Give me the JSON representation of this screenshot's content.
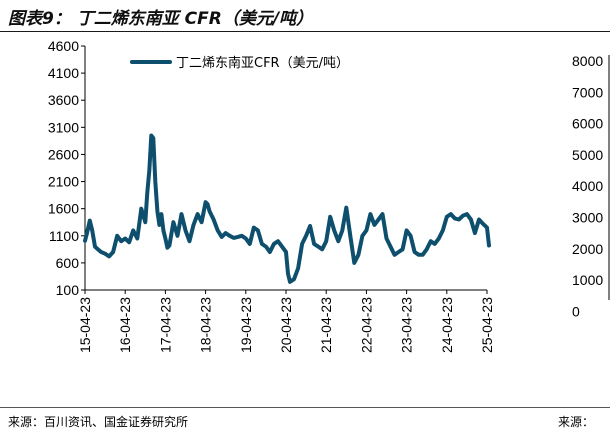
{
  "figure": {
    "title": "图表9： 丁二烯东南亚 CFR（美元/吨）",
    "source_left": "来源：百川资讯、国金证券研究所",
    "source_right": "来源："
  },
  "right_panel": {
    "tick_labels": [
      "8000",
      "7000",
      "6000",
      "5000",
      "4000",
      "3000",
      "2000",
      "1000",
      "0"
    ]
  },
  "chart_data": {
    "type": "line",
    "title": "",
    "xlabel": "",
    "ylabel": "",
    "ylim": [
      100,
      4600
    ],
    "yticks": [
      100,
      600,
      1100,
      1600,
      2100,
      2600,
      3100,
      3600,
      4100,
      4600
    ],
    "xticks": [
      "15-04-23",
      "16-04-23",
      "17-04-23",
      "18-04-23",
      "19-04-23",
      "20-04-23",
      "21-04-23",
      "22-04-23",
      "23-04-23",
      "24-04-23",
      "25-04-23"
    ],
    "legend": "top-left",
    "series": [
      {
        "name": "丁二烯东南亚CFR（美元/吨）",
        "color": "#0f4f6e",
        "x": [
          0,
          0.05,
          0.12,
          0.18,
          0.25,
          0.32,
          0.4,
          0.5,
          0.6,
          0.7,
          0.8,
          0.9,
          1.0,
          1.1,
          1.2,
          1.3,
          1.4,
          1.5,
          1.55,
          1.6,
          1.65,
          1.7,
          1.75,
          1.8,
          1.85,
          1.9,
          1.95,
          2.0,
          2.05,
          2.1,
          2.2,
          2.3,
          2.4,
          2.5,
          2.6,
          2.7,
          2.8,
          2.9,
          3.0,
          3.05,
          3.1,
          3.2,
          3.3,
          3.4,
          3.5,
          3.6,
          3.7,
          3.8,
          3.9,
          4.0,
          4.1,
          4.2,
          4.3,
          4.4,
          4.5,
          4.6,
          4.7,
          4.8,
          4.9,
          5.0,
          5.05,
          5.1,
          5.2,
          5.3,
          5.4,
          5.5,
          5.6,
          5.7,
          5.8,
          5.9,
          6.0,
          6.1,
          6.2,
          6.3,
          6.4,
          6.5,
          6.6,
          6.7,
          6.8,
          6.9,
          7.0,
          7.1,
          7.2,
          7.3,
          7.4,
          7.5,
          7.6,
          7.7,
          7.8,
          7.9,
          8.0,
          8.1,
          8.2,
          8.3,
          8.4,
          8.5,
          8.6,
          8.7,
          8.8,
          8.9,
          9.0,
          9.1,
          9.2,
          9.3,
          9.4,
          9.5,
          9.6,
          9.7,
          9.8,
          9.9,
          10.0,
          10.05
        ],
        "values": [
          1010,
          1150,
          1380,
          1200,
          900,
          850,
          800,
          770,
          720,
          800,
          1100,
          1000,
          1050,
          980,
          1200,
          1050,
          1600,
          1350,
          1900,
          2300,
          2950,
          2900,
          2100,
          1550,
          1300,
          1500,
          1200,
          1050,
          880,
          920,
          1350,
          1100,
          1500,
          1200,
          1000,
          1300,
          1500,
          1350,
          1720,
          1680,
          1550,
          1400,
          1200,
          1080,
          1150,
          1100,
          1060,
          1080,
          1100,
          1050,
          950,
          1250,
          1200,
          950,
          900,
          800,
          950,
          1000,
          900,
          800,
          400,
          250,
          300,
          500,
          950,
          1100,
          1280,
          950,
          900,
          850,
          1000,
          1450,
          1200,
          1000,
          1200,
          1620,
          1100,
          600,
          750,
          1100,
          1200,
          1500,
          1300,
          1400,
          1500,
          1050,
          900,
          750,
          800,
          850,
          1200,
          1100,
          800,
          750,
          750,
          850,
          1000,
          950,
          1050,
          1200,
          1450,
          1500,
          1420,
          1400,
          1470,
          1500,
          1400,
          1150,
          1400,
          1320,
          1250,
          920
        ]
      }
    ]
  }
}
